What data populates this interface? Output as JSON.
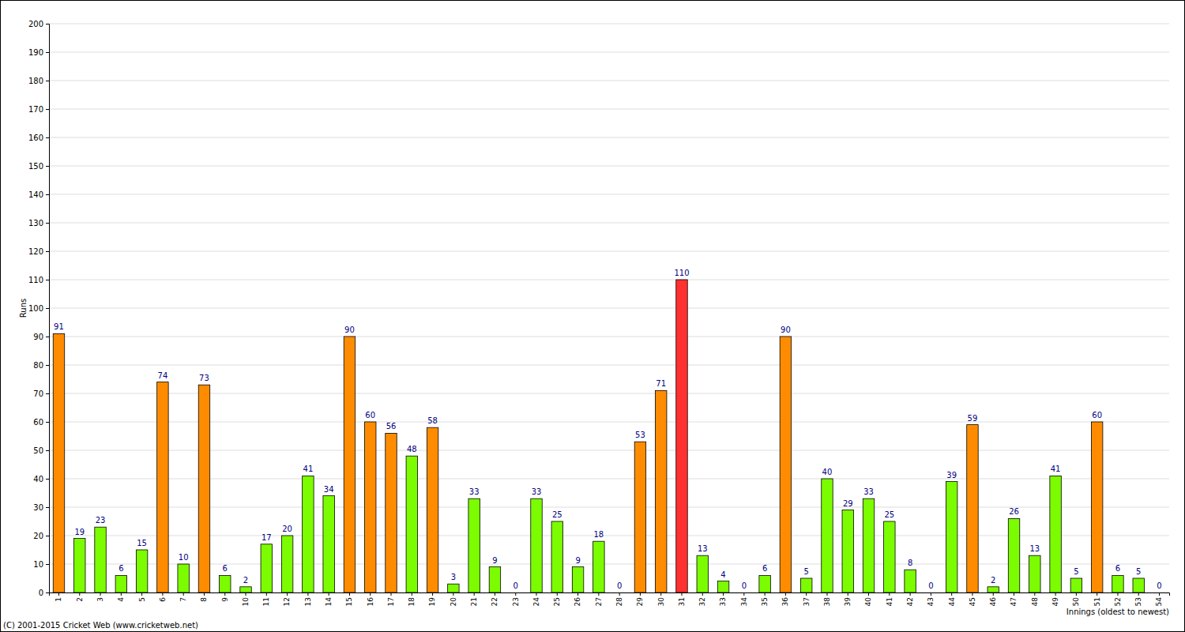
{
  "chart_data": {
    "type": "bar",
    "x_label": "Innings (oldest to newest)",
    "y_label": "Runs",
    "annotations": [
      "(C) 2001-2015 Cricket Web (www.cricketweb.net)"
    ],
    "categories": [
      "1",
      "2",
      "3",
      "4",
      "5",
      "6",
      "7",
      "8",
      "9",
      "10",
      "11",
      "12",
      "13",
      "14",
      "15",
      "16",
      "17",
      "18",
      "19",
      "20",
      "21",
      "22",
      "23",
      "24",
      "25",
      "26",
      "27",
      "28",
      "29",
      "30",
      "31",
      "32",
      "33",
      "34",
      "35",
      "36",
      "37",
      "38",
      "39",
      "40",
      "41",
      "42",
      "43",
      "44",
      "45",
      "46",
      "47",
      "48",
      "49",
      "50",
      "51",
      "52",
      "53",
      "54"
    ],
    "values": [
      91,
      19,
      23,
      6,
      15,
      74,
      10,
      73,
      6,
      2,
      17,
      20,
      41,
      34,
      90,
      60,
      56,
      48,
      58,
      3,
      33,
      9,
      0,
      33,
      25,
      9,
      18,
      0,
      53,
      71,
      110,
      13,
      4,
      0,
      6,
      90,
      5,
      40,
      29,
      33,
      25,
      8,
      0,
      39,
      59,
      2,
      26,
      13,
      41,
      5,
      60,
      6,
      5,
      0
    ],
    "colors": [
      "#ff8c00",
      "#7cfc00",
      "#7cfc00",
      "#7cfc00",
      "#7cfc00",
      "#ff8c00",
      "#7cfc00",
      "#ff8c00",
      "#7cfc00",
      "#7cfc00",
      "#7cfc00",
      "#7cfc00",
      "#7cfc00",
      "#7cfc00",
      "#ff8c00",
      "#ff8c00",
      "#ff8c00",
      "#7cfc00",
      "#ff8c00",
      "#7cfc00",
      "#7cfc00",
      "#7cfc00",
      "#7cfc00",
      "#7cfc00",
      "#7cfc00",
      "#7cfc00",
      "#7cfc00",
      "#7cfc00",
      "#ff8c00",
      "#ff8c00",
      "#ff3030",
      "#7cfc00",
      "#7cfc00",
      "#7cfc00",
      "#7cfc00",
      "#ff8c00",
      "#7cfc00",
      "#7cfc00",
      "#7cfc00",
      "#7cfc00",
      "#7cfc00",
      "#7cfc00",
      "#7cfc00",
      "#7cfc00",
      "#ff8c00",
      "#7cfc00",
      "#7cfc00",
      "#7cfc00",
      "#7cfc00",
      "#7cfc00",
      "#ff8c00",
      "#7cfc00",
      "#7cfc00",
      "#7cfc00"
    ],
    "ylim": [
      0,
      200
    ],
    "yticks": [
      0,
      10,
      20,
      30,
      40,
      50,
      60,
      70,
      80,
      90,
      100,
      110,
      120,
      130,
      140,
      150,
      160,
      170,
      180,
      190,
      200
    ],
    "grid": true,
    "data_labels": true
  }
}
